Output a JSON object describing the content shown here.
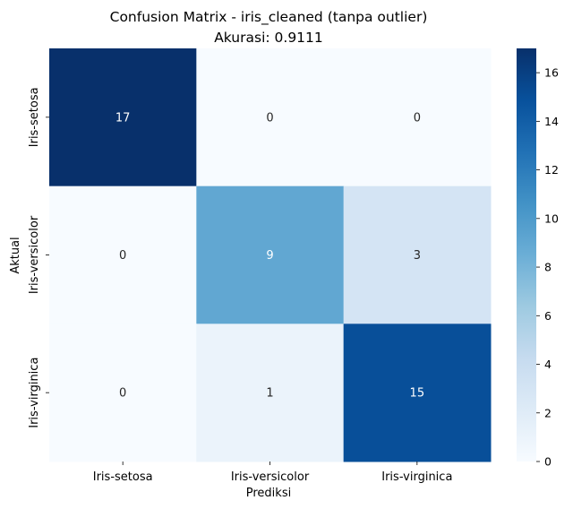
{
  "chart_data": {
    "type": "heatmap",
    "title": "Confusion Matrix - iris_cleaned (tanpa outlier)",
    "subtitle": "Akurasi: 0.9111",
    "xlabel": "Prediksi",
    "ylabel": "Aktual",
    "x_categories": [
      "Iris-setosa",
      "Iris-versicolor",
      "Iris-virginica"
    ],
    "y_categories": [
      "Iris-setosa",
      "Iris-versicolor",
      "Iris-virginica"
    ],
    "values": [
      [
        17,
        0,
        0
      ],
      [
        0,
        9,
        3
      ],
      [
        0,
        1,
        15
      ]
    ],
    "colormap": "Blues",
    "colorbar": {
      "range": [
        0,
        17
      ],
      "ticks": [
        0,
        2,
        4,
        6,
        8,
        10,
        12,
        14,
        16
      ]
    },
    "grid": false
  }
}
